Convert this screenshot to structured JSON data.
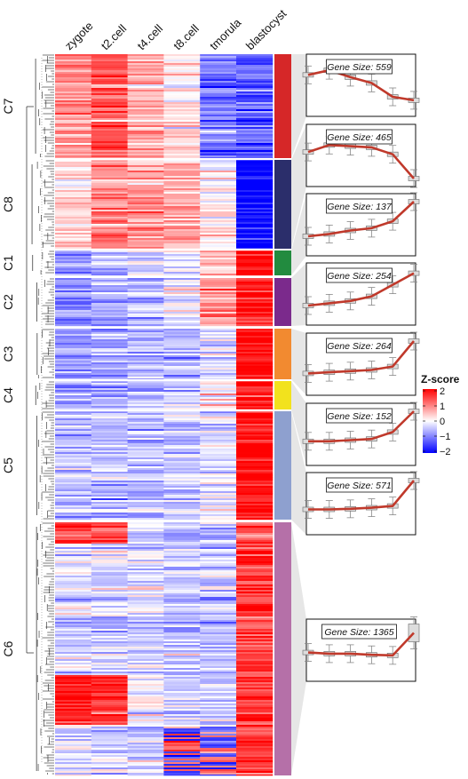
{
  "chart_data": {
    "type": "heatmap",
    "columns": [
      "zygote",
      "t2.cell",
      "t4.cell",
      "t8.cell",
      "tmorula",
      "blastocyst"
    ],
    "clusters": [
      {
        "name": "C7",
        "size": 559,
        "color": "#d62728",
        "mean_z": [
          0.9,
          1.3,
          0.7,
          0.2,
          -1.0,
          -1.3
        ]
      },
      {
        "name": "C8",
        "size": 465,
        "color": "#2b2e6b",
        "mean_z": [
          0.3,
          0.9,
          0.8,
          0.7,
          0.1,
          -2.0
        ]
      },
      {
        "name": "C1",
        "size": 137,
        "color": "#228b3f",
        "mean_z": [
          -1.0,
          -0.8,
          -0.5,
          -0.3,
          0.3,
          2.0
        ]
      },
      {
        "name": "C2",
        "size": 254,
        "color": "#7b2a8c",
        "mean_z": [
          -1.0,
          -0.8,
          -0.6,
          -0.2,
          0.8,
          1.8
        ]
      },
      {
        "name": "C3",
        "size": 264,
        "color": "#f28a30",
        "mean_z": [
          -0.8,
          -0.7,
          -0.6,
          -0.5,
          -0.2,
          2.0
        ]
      },
      {
        "name": "C4",
        "size": 152,
        "color": "#f2e21d",
        "mean_z": [
          -0.6,
          -0.6,
          -0.5,
          -0.4,
          0.2,
          2.0
        ]
      },
      {
        "name": "C5",
        "size": 571,
        "color": "#8ea0cf",
        "mean_z": [
          -0.5,
          -0.5,
          -0.45,
          -0.35,
          -0.2,
          2.0
        ]
      },
      {
        "name": "C6",
        "size": 1365,
        "color": "#b570a8",
        "mean_z": [
          -0.2,
          -0.3,
          -0.3,
          -0.4,
          -0.45,
          1.5
        ]
      }
    ],
    "colorbar": {
      "title": "Z-score",
      "ticks": [
        "2",
        "1",
        "0",
        "−1",
        "−2"
      ],
      "range": [
        -2,
        2
      ],
      "colors": [
        "#0000ff",
        "#ffffff",
        "#ff0000"
      ]
    },
    "box_label_prefix": "Gene Size: ",
    "line_color": "#c0392b"
  }
}
